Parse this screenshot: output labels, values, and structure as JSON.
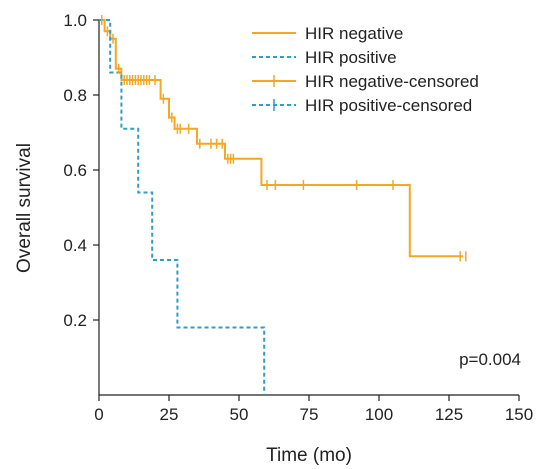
{
  "chart_data": {
    "type": "line",
    "xlabel": "Time (mo)",
    "ylabel": "Overall survival",
    "xlim": [
      0,
      150
    ],
    "ylim": [
      0,
      1.0
    ],
    "xticks": [
      0,
      25,
      50,
      75,
      100,
      125,
      150
    ],
    "yticks": [
      0.2,
      0.4,
      0.6,
      0.8,
      1.0
    ],
    "xtick_labels": [
      "0",
      "25",
      "50",
      "75",
      "100",
      "125",
      "150"
    ],
    "ytick_labels": [
      "0.2",
      "0.4",
      "0.6",
      "0.8",
      "1.0"
    ],
    "grid": false,
    "legend_position": "top-right",
    "annotation": "p=0.004",
    "series": [
      {
        "name": "HIR negative",
        "color": "#f5a623",
        "dash": "solid",
        "steps": [
          [
            0,
            1.0
          ],
          [
            2,
            0.97
          ],
          [
            4,
            0.95
          ],
          [
            6,
            0.87
          ],
          [
            8,
            0.84
          ],
          [
            22,
            0.79
          ],
          [
            25,
            0.74
          ],
          [
            27,
            0.71
          ],
          [
            35,
            0.67
          ],
          [
            45,
            0.63
          ],
          [
            58,
            0.56
          ],
          [
            111,
            0.37
          ],
          [
            130,
            0.37
          ]
        ]
      },
      {
        "name": "HIR positive",
        "color": "#2e9ec9",
        "dash": "dashed",
        "steps": [
          [
            0,
            1.0
          ],
          [
            4,
            0.86
          ],
          [
            8,
            0.71
          ],
          [
            14,
            0.54
          ],
          [
            19,
            0.36
          ],
          [
            28,
            0.18
          ],
          [
            59,
            0.0
          ]
        ]
      },
      {
        "name": "HIR negative-censored",
        "color": "#f5a623",
        "dash": "solid",
        "marker": "+",
        "points": [
          [
            1,
            1.0
          ],
          [
            3,
            0.97
          ],
          [
            5,
            0.95
          ],
          [
            7,
            0.87
          ],
          [
            9,
            0.84
          ],
          [
            10,
            0.84
          ],
          [
            11,
            0.84
          ],
          [
            12,
            0.84
          ],
          [
            13,
            0.84
          ],
          [
            14,
            0.84
          ],
          [
            15,
            0.84
          ],
          [
            16,
            0.84
          ],
          [
            17,
            0.84
          ],
          [
            18,
            0.84
          ],
          [
            20,
            0.84
          ],
          [
            23,
            0.79
          ],
          [
            25,
            0.75
          ],
          [
            26,
            0.74
          ],
          [
            27,
            0.72
          ],
          [
            28,
            0.71
          ],
          [
            29,
            0.71
          ],
          [
            32,
            0.71
          ],
          [
            36,
            0.67
          ],
          [
            40,
            0.67
          ],
          [
            42,
            0.67
          ],
          [
            44,
            0.67
          ],
          [
            46,
            0.63
          ],
          [
            47,
            0.63
          ],
          [
            48,
            0.63
          ],
          [
            60,
            0.56
          ],
          [
            63,
            0.56
          ],
          [
            73,
            0.56
          ],
          [
            92,
            0.56
          ],
          [
            105,
            0.56
          ],
          [
            129,
            0.37
          ],
          [
            131,
            0.37
          ]
        ]
      },
      {
        "name": "HIR positive-censored",
        "color": "#2e9ec9",
        "dash": "dashed",
        "marker": "+",
        "points": []
      }
    ]
  }
}
